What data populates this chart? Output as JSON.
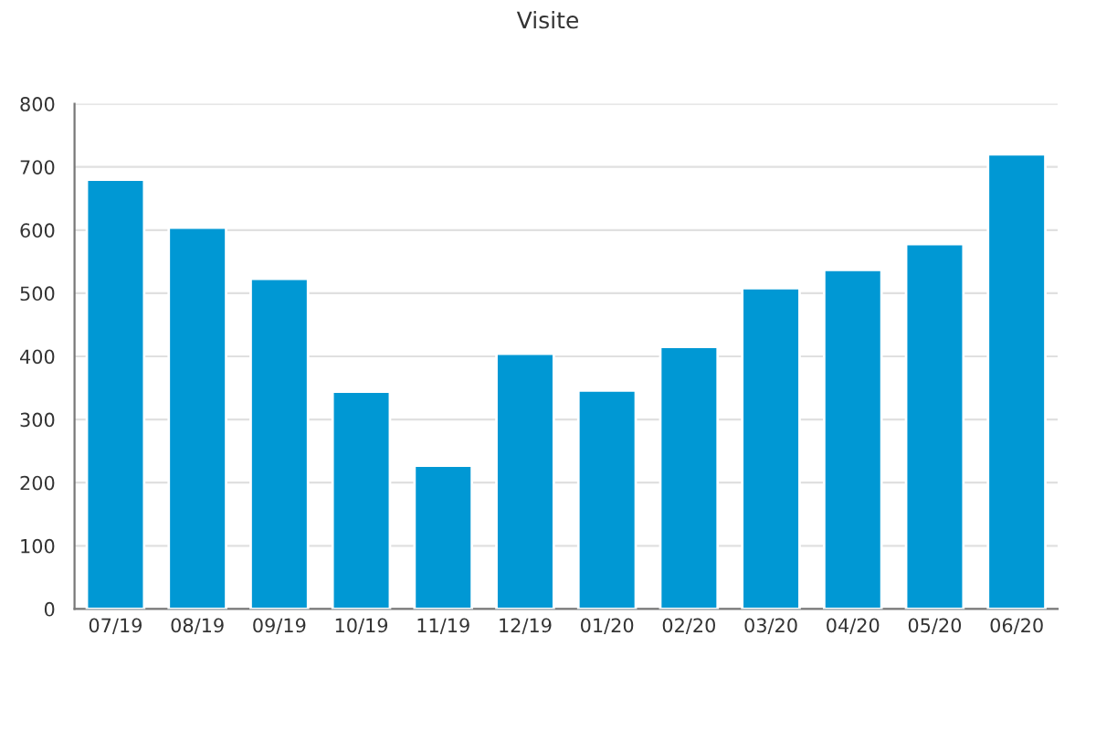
{
  "chart_data": {
    "type": "bar",
    "title": "Visite",
    "categories": [
      "07/19",
      "08/19",
      "09/19",
      "10/19",
      "11/19",
      "12/19",
      "01/20",
      "02/20",
      "03/20",
      "04/20",
      "05/20",
      "06/20"
    ],
    "values": [
      680,
      604,
      523,
      344,
      227,
      404,
      346,
      415,
      508,
      537,
      578,
      720
    ],
    "color": "#0098d4",
    "ylim": [
      0,
      800
    ],
    "yticks": [
      0,
      100,
      200,
      300,
      400,
      500,
      600,
      700,
      800
    ],
    "grid": "y"
  }
}
